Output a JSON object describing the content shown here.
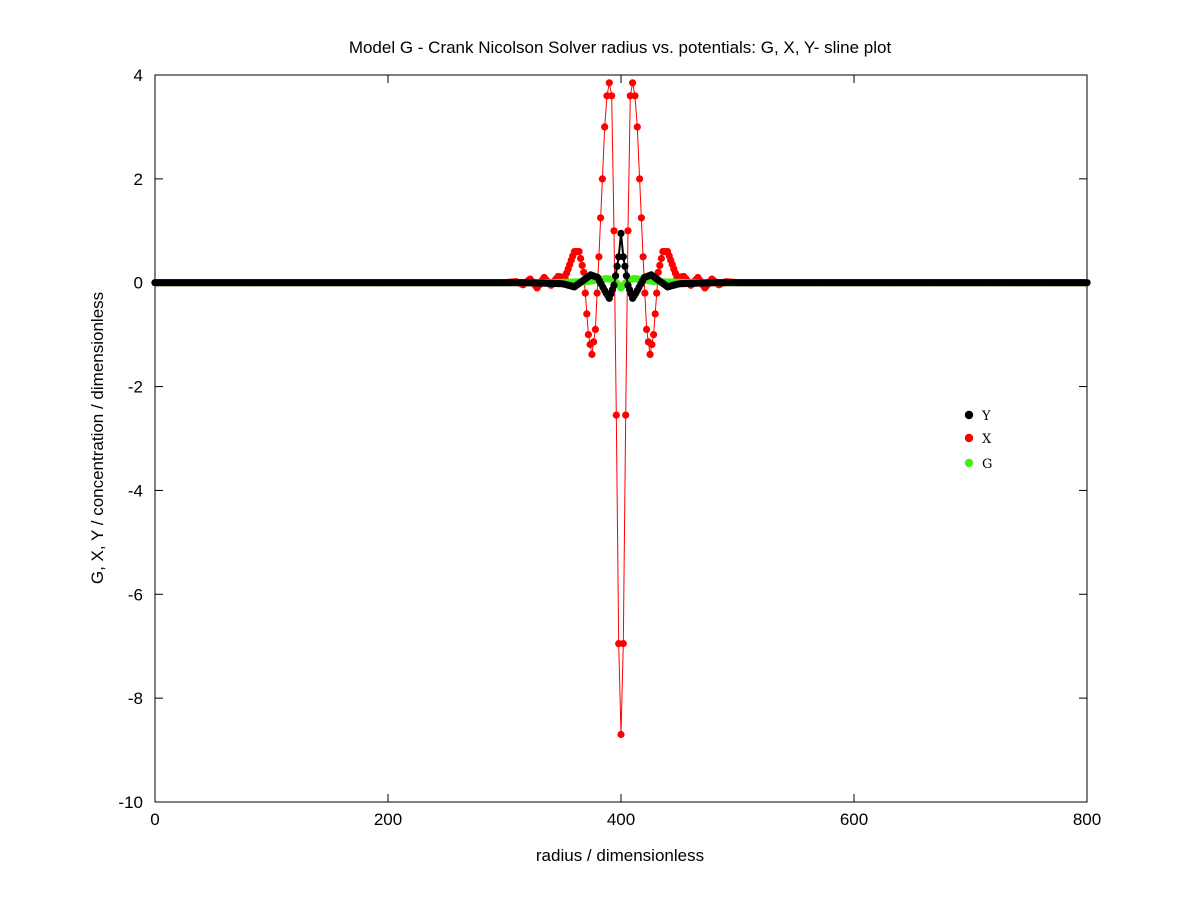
{
  "chart_data": {
    "type": "scatter",
    "title": "Model G - Crank Nicolson Solver radius vs. potentials: G, X, Y- sline plot",
    "xlabel": "radius / dimensionless",
    "ylabel": "G, X, Y / concentration / dimensionless",
    "xlim": [
      0,
      800
    ],
    "ylim": [
      -10,
      4
    ],
    "xticks": [
      0,
      200,
      400,
      600,
      800
    ],
    "xtick_labels": [
      "0",
      "200",
      "400",
      "600",
      "800"
    ],
    "yticks": [
      4,
      2,
      0,
      -2,
      -4,
      -6,
      -8,
      -10
    ],
    "ytick_labels": [
      "4",
      "2",
      "0",
      "-2",
      "-4",
      "-6",
      "-8",
      "-10"
    ],
    "grid": false,
    "legend_position": "right",
    "series": [
      {
        "name": "X",
        "color": "#ff0000",
        "style": "line-markers",
        "x": [
          0,
          300,
          310,
          316,
          322,
          328,
          334,
          340,
          346,
          352,
          356,
          360,
          364,
          368,
          372,
          375,
          378,
          381,
          384,
          386,
          388,
          390,
          392,
          394,
          396,
          398,
          400,
          402,
          404,
          406,
          408,
          410,
          412,
          414,
          416,
          419,
          422,
          425,
          428,
          432,
          436,
          440,
          444,
          448,
          454,
          460,
          466,
          472,
          478,
          484,
          490,
          500,
          800
        ],
        "y": [
          0,
          0,
          0.02,
          -0.04,
          0.07,
          -0.1,
          0.1,
          -0.05,
          0.12,
          0.1,
          0.35,
          0.6,
          0.6,
          0.2,
          -1.0,
          -1.38,
          -0.9,
          0.5,
          2.0,
          3.0,
          3.6,
          3.85,
          3.6,
          1.0,
          -2.55,
          -6.95,
          -8.7,
          -6.95,
          -2.55,
          1.0,
          3.6,
          3.85,
          3.6,
          3.0,
          2.0,
          0.5,
          -0.9,
          -1.38,
          -1.0,
          0.2,
          0.6,
          0.6,
          0.35,
          0.1,
          0.12,
          -0.05,
          0.1,
          -0.1,
          0.07,
          -0.04,
          0.02,
          0,
          0
        ]
      },
      {
        "name": "Y",
        "color": "#000000",
        "style": "line-markers",
        "x": [
          0,
          320,
          350,
          360,
          368,
          374,
          380,
          386,
          390,
          394,
          398,
          400,
          402,
          406,
          410,
          414,
          420,
          426,
          432,
          440,
          450,
          480,
          800
        ],
        "y": [
          0,
          0,
          -0.02,
          -0.08,
          0.05,
          0.15,
          0.1,
          -0.15,
          -0.3,
          -0.05,
          0.5,
          0.95,
          0.5,
          -0.05,
          -0.3,
          -0.15,
          0.1,
          0.15,
          0.05,
          -0.08,
          -0.02,
          0,
          0
        ]
      },
      {
        "name": "G",
        "color": "#44ee11",
        "style": "line-markers",
        "x": [
          0,
          340,
          370,
          380,
          388,
          394,
          400,
          406,
          412,
          420,
          430,
          460,
          800
        ],
        "y": [
          0,
          0,
          0.02,
          0.05,
          0.08,
          0.05,
          -0.1,
          0.05,
          0.08,
          0.05,
          0.02,
          0,
          0
        ]
      }
    ],
    "legend": [
      {
        "label": "Y",
        "color": "#000000"
      },
      {
        "label": "X",
        "color": "#ff0000"
      },
      {
        "label": "G",
        "color": "#44ee11"
      }
    ]
  }
}
